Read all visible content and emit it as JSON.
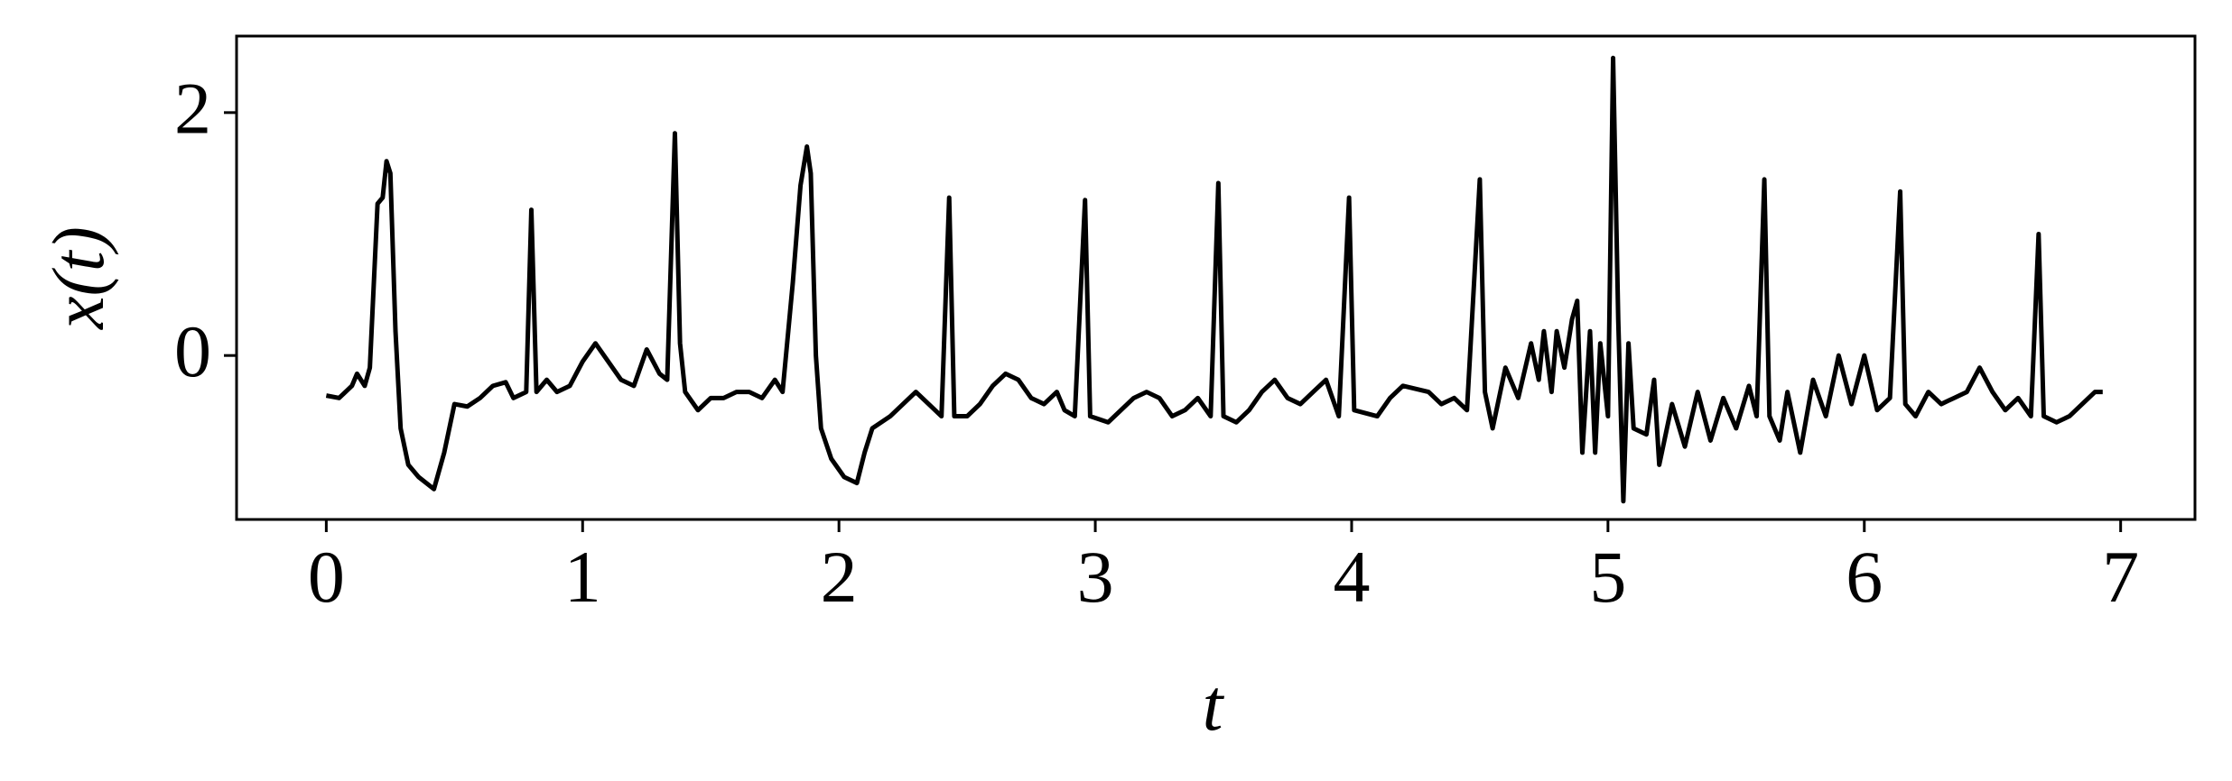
{
  "chart_data": {
    "type": "line",
    "xlabel": "t",
    "ylabel": "x(t)",
    "color": "#000000",
    "xlim": [
      -0.35,
      7.29
    ],
    "ylim": [
      -1.35,
      2.63
    ],
    "xticks": [
      0,
      1,
      2,
      3,
      4,
      5,
      6,
      7
    ],
    "yticks": [
      0,
      2
    ],
    "x": [
      0.0,
      0.05,
      0.1,
      0.12,
      0.15,
      0.17,
      0.2,
      0.22,
      0.235,
      0.25,
      0.27,
      0.29,
      0.32,
      0.36,
      0.42,
      0.46,
      0.5,
      0.55,
      0.6,
      0.65,
      0.7,
      0.73,
      0.78,
      0.8,
      0.82,
      0.86,
      0.9,
      0.95,
      1.0,
      1.05,
      1.1,
      1.15,
      1.2,
      1.25,
      1.3,
      1.33,
      1.36,
      1.38,
      1.4,
      1.45,
      1.5,
      1.55,
      1.6,
      1.65,
      1.7,
      1.75,
      1.78,
      1.82,
      1.85,
      1.875,
      1.89,
      1.91,
      1.93,
      1.97,
      2.02,
      2.07,
      2.1,
      2.13,
      2.2,
      2.25,
      2.3,
      2.35,
      2.4,
      2.43,
      2.45,
      2.5,
      2.55,
      2.6,
      2.65,
      2.7,
      2.75,
      2.8,
      2.85,
      2.88,
      2.92,
      2.96,
      2.98,
      3.05,
      3.1,
      3.15,
      3.2,
      3.25,
      3.3,
      3.35,
      3.4,
      3.45,
      3.48,
      3.5,
      3.55,
      3.6,
      3.65,
      3.7,
      3.75,
      3.8,
      3.85,
      3.9,
      3.95,
      3.99,
      4.01,
      4.1,
      4.15,
      4.2,
      4.3,
      4.35,
      4.4,
      4.45,
      4.5,
      4.52,
      4.55,
      4.6,
      4.65,
      4.7,
      4.73,
      4.75,
      4.78,
      4.8,
      4.83,
      4.86,
      4.88,
      4.9,
      4.93,
      4.95,
      4.97,
      5.0,
      5.02,
      5.04,
      5.06,
      5.08,
      5.1,
      5.15,
      5.18,
      5.2,
      5.25,
      5.3,
      5.35,
      5.4,
      5.45,
      5.5,
      5.55,
      5.58,
      5.61,
      5.63,
      5.67,
      5.7,
      5.75,
      5.8,
      5.85,
      5.9,
      5.95,
      6.0,
      6.05,
      6.1,
      6.14,
      6.16,
      6.2,
      6.25,
      6.3,
      6.35,
      6.4,
      6.45,
      6.5,
      6.55,
      6.6,
      6.65,
      6.68,
      6.7,
      6.75,
      6.8,
      6.85,
      6.9,
      6.93
    ],
    "values": [
      -0.33,
      -0.35,
      -0.25,
      -0.15,
      -0.25,
      -0.1,
      1.25,
      1.3,
      1.6,
      1.5,
      0.2,
      -0.6,
      -0.9,
      -1.0,
      -1.1,
      -0.8,
      -0.4,
      -0.42,
      -0.35,
      -0.25,
      -0.22,
      -0.35,
      -0.3,
      1.2,
      -0.3,
      -0.2,
      -0.3,
      -0.25,
      -0.05,
      0.1,
      -0.05,
      -0.2,
      -0.25,
      0.05,
      -0.15,
      -0.2,
      1.83,
      0.1,
      -0.3,
      -0.45,
      -0.35,
      -0.35,
      -0.3,
      -0.3,
      -0.35,
      -0.2,
      -0.3,
      0.6,
      1.4,
      1.72,
      1.5,
      0.0,
      -0.6,
      -0.85,
      -1.0,
      -1.05,
      -0.8,
      -0.6,
      -0.5,
      -0.4,
      -0.3,
      -0.4,
      -0.5,
      1.3,
      -0.5,
      -0.5,
      -0.4,
      -0.25,
      -0.15,
      -0.2,
      -0.35,
      -0.4,
      -0.3,
      -0.45,
      -0.5,
      1.28,
      -0.5,
      -0.55,
      -0.45,
      -0.35,
      -0.3,
      -0.35,
      -0.5,
      -0.45,
      -0.35,
      -0.5,
      1.42,
      -0.5,
      -0.55,
      -0.45,
      -0.3,
      -0.2,
      -0.35,
      -0.4,
      -0.3,
      -0.2,
      -0.5,
      1.3,
      -0.45,
      -0.5,
      -0.35,
      -0.25,
      -0.3,
      -0.4,
      -0.35,
      -0.45,
      1.45,
      -0.3,
      -0.6,
      -0.1,
      -0.35,
      0.1,
      -0.2,
      0.2,
      -0.3,
      0.2,
      -0.1,
      0.3,
      0.45,
      -0.8,
      0.2,
      -0.8,
      0.1,
      -0.5,
      2.45,
      0.3,
      -1.2,
      0.1,
      -0.6,
      -0.65,
      -0.2,
      -0.9,
      -0.4,
      -0.75,
      -0.3,
      -0.7,
      -0.35,
      -0.6,
      -0.25,
      -0.5,
      1.45,
      -0.5,
      -0.7,
      -0.3,
      -0.8,
      -0.2,
      -0.5,
      0.0,
      -0.4,
      0.0,
      -0.45,
      -0.35,
      1.35,
      -0.4,
      -0.5,
      -0.3,
      -0.4,
      -0.35,
      -0.3,
      -0.1,
      -0.3,
      -0.45,
      -0.35,
      -0.5,
      1.0,
      -0.5,
      -0.55,
      -0.5,
      -0.4,
      -0.3,
      -0.3
    ]
  }
}
